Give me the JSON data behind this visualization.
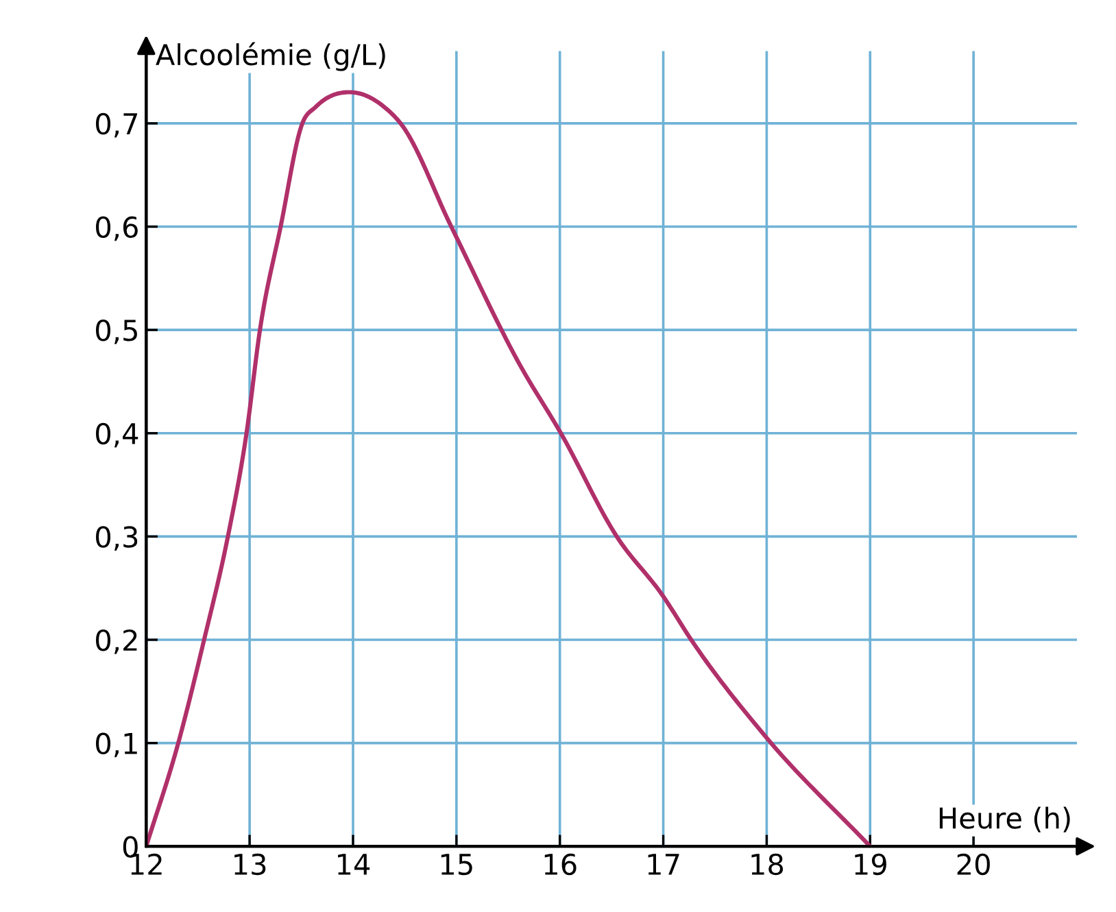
{
  "chart_data": {
    "type": "line",
    "xlabel": "Heure (h)",
    "ylabel": "Alcoolémie (g/L)",
    "x": [
      12,
      12.31,
      12.56,
      12.79,
      12.97,
      13.1,
      13.3,
      13.51,
      13.64,
      14,
      14.3,
      14.46,
      14.95,
      15.62,
      16.01,
      16.55,
      17,
      17.27,
      18,
      19
    ],
    "series": [
      {
        "color": "#b0306a",
        "values": [
          0,
          0.1,
          0.2,
          0.3,
          0.4,
          0.5,
          0.6,
          0.7,
          0.716,
          0.73,
          0.716,
          0.7,
          0.6,
          0.465,
          0.4,
          0.3,
          0.242,
          0.2,
          0.105,
          0
        ]
      }
    ],
    "xlim": [
      12,
      21
    ],
    "ylim": [
      0,
      0.77
    ],
    "xticks": [
      12,
      13,
      14,
      15,
      16,
      17,
      18,
      19,
      20
    ],
    "yticks": [
      0,
      {
        "value": 0.1,
        "label": "0,1"
      },
      {
        "value": 0.2,
        "label": "0,2"
      },
      {
        "value": 0.3,
        "label": "0,3"
      },
      {
        "value": 0.4,
        "label": "0,4"
      },
      {
        "value": 0.5,
        "label": "0,5"
      },
      {
        "value": 0.6,
        "label": "0,6"
      },
      {
        "value": 0.7,
        "label": "0,7"
      }
    ],
    "grid": true,
    "marker": "none",
    "line_style": "solid"
  }
}
